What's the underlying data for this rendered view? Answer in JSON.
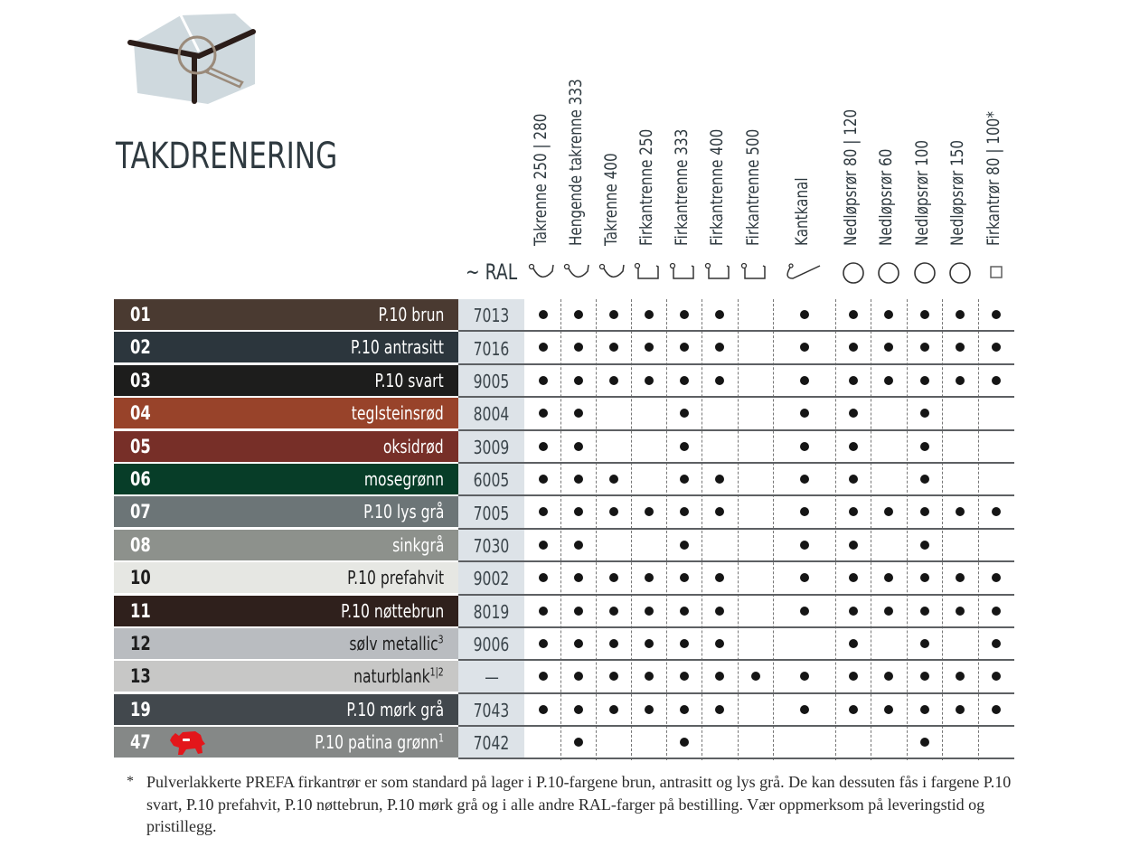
{
  "title": "TAKDRENERING",
  "ral_header": "~ RAL",
  "columns": [
    {
      "label": "Takrenne 250 | 280",
      "icon": "half-round-gutter-icon"
    },
    {
      "label": "Hengende takrenne 333",
      "icon": "half-round-gutter-icon"
    },
    {
      "label": "Takrenne 400",
      "icon": "half-round-gutter-icon"
    },
    {
      "label": "Firkantrenne 250",
      "icon": "box-gutter-icon"
    },
    {
      "label": "Firkantrenne 333",
      "icon": "box-gutter-icon"
    },
    {
      "label": "Firkantrenne 400",
      "icon": "box-gutter-icon"
    },
    {
      "label": "Firkantrenne 500",
      "icon": "box-gutter-icon"
    },
    {
      "label": "Kantkanal",
      "icon": "edge-channel-icon"
    },
    {
      "label": "Nedløpsrør 80 | 120",
      "icon": "round-pipe-icon"
    },
    {
      "label": "Nedløpsrør 60",
      "icon": "round-pipe-icon"
    },
    {
      "label": "Nedløpsrør 100",
      "icon": "round-pipe-icon"
    },
    {
      "label": "Nedløpsrør 150",
      "icon": "round-pipe-icon"
    },
    {
      "label": "Firkantrør 80 | 100*",
      "icon": "square-pipe-icon"
    }
  ],
  "rows": [
    {
      "num": "01",
      "name": "P.10 brun",
      "sup": "",
      "ral": "7013",
      "bg": "#4a3a31",
      "fg": "#ffffff",
      "avail": [
        1,
        1,
        1,
        1,
        1,
        1,
        0,
        1,
        1,
        1,
        1,
        1,
        1
      ]
    },
    {
      "num": "02",
      "name": "P.10 antrasitt",
      "sup": "",
      "ral": "7016",
      "bg": "#2c363d",
      "fg": "#ffffff",
      "avail": [
        1,
        1,
        1,
        1,
        1,
        1,
        0,
        1,
        1,
        1,
        1,
        1,
        1
      ]
    },
    {
      "num": "03",
      "name": "P.10 svart",
      "sup": "",
      "ral": "9005",
      "bg": "#1d1d1c",
      "fg": "#ffffff",
      "avail": [
        1,
        1,
        1,
        1,
        1,
        1,
        0,
        1,
        1,
        1,
        1,
        1,
        1
      ]
    },
    {
      "num": "04",
      "name": "teglsteinsrød",
      "sup": "",
      "ral": "8004",
      "bg": "#98432a",
      "fg": "#ffffff",
      "avail": [
        1,
        1,
        0,
        0,
        1,
        0,
        0,
        1,
        1,
        0,
        1,
        0,
        0
      ]
    },
    {
      "num": "05",
      "name": "oksidrød",
      "sup": "",
      "ral": "3009",
      "bg": "#772f28",
      "fg": "#ffffff",
      "avail": [
        1,
        1,
        0,
        0,
        1,
        0,
        0,
        1,
        1,
        0,
        1,
        0,
        0
      ]
    },
    {
      "num": "06",
      "name": "mosegrønn",
      "sup": "",
      "ral": "6005",
      "bg": "#073d28",
      "fg": "#ffffff",
      "avail": [
        1,
        1,
        1,
        0,
        1,
        1,
        0,
        1,
        1,
        0,
        1,
        0,
        0
      ]
    },
    {
      "num": "07",
      "name": "P.10 lys grå",
      "sup": "",
      "ral": "7005",
      "bg": "#6c7577",
      "fg": "#ffffff",
      "avail": [
        1,
        1,
        1,
        1,
        1,
        1,
        0,
        1,
        1,
        1,
        1,
        1,
        1
      ]
    },
    {
      "num": "08",
      "name": "sinkgrå",
      "sup": "",
      "ral": "7030",
      "bg": "#8d918c",
      "fg": "#ffffff",
      "avail": [
        1,
        1,
        0,
        0,
        1,
        0,
        0,
        1,
        1,
        0,
        1,
        0,
        0
      ]
    },
    {
      "num": "10",
      "name": "P.10 prefahvit",
      "sup": "",
      "ral": "9002",
      "bg": "#e6e7e3",
      "fg": "#1d1d1d",
      "avail": [
        1,
        1,
        1,
        1,
        1,
        1,
        0,
        1,
        1,
        1,
        1,
        1,
        1
      ]
    },
    {
      "num": "11",
      "name": "P.10 nøttebrun",
      "sup": "",
      "ral": "8019",
      "bg": "#2f201c",
      "fg": "#ffffff",
      "avail": [
        1,
        1,
        1,
        1,
        1,
        1,
        0,
        1,
        1,
        1,
        1,
        1,
        1
      ]
    },
    {
      "num": "12",
      "name": "sølv metallic",
      "sup": "3",
      "ral": "9006",
      "bg": "#b9bcc0",
      "fg": "#1d1d1d",
      "avail": [
        1,
        1,
        1,
        1,
        1,
        1,
        0,
        0,
        1,
        0,
        1,
        0,
        1
      ]
    },
    {
      "num": "13",
      "name": "naturblank",
      "sup": "1|2",
      "ral": "—",
      "bg": "#c7c7c6",
      "fg": "#1d1d1d",
      "avail": [
        1,
        1,
        1,
        1,
        1,
        1,
        1,
        1,
        1,
        1,
        1,
        1,
        1
      ]
    },
    {
      "num": "19",
      "name": "P.10 mørk grå",
      "sup": "",
      "ral": "7043",
      "bg": "#42484d",
      "fg": "#ffffff",
      "avail": [
        1,
        1,
        1,
        1,
        1,
        1,
        0,
        1,
        1,
        1,
        1,
        1,
        1
      ]
    },
    {
      "num": "47",
      "name": "P.10 patina grønn",
      "sup": "1",
      "ral": "7042",
      "bg": "#858887",
      "fg": "#ffffff",
      "avail": [
        0,
        1,
        0,
        0,
        1,
        0,
        0,
        0,
        0,
        0,
        1,
        0,
        0
      ],
      "badge": "bull-icon"
    }
  ],
  "footnote": {
    "marker": "*",
    "text": "Pulverlakkerte PREFA firkantrør er som standard på lager i P.10-fargene brun, antrasitt og lys grå. De kan dessuten fås i fargene P.10 svart, P.10 prefahvit, P.10 nøttebrun, P.10 mørk grå og i alle andre RAL-farger på bestilling. Vær oppmerksom på leveringstid og pristillegg."
  },
  "colors": {
    "title": "#2f3a40",
    "ral_bg": "#dde3e8",
    "dot": "#151515",
    "logo_house": "#cfd9de",
    "logo_gutter": "#2b1d19",
    "logo_lens": "#9a8a7a",
    "bull": "#e3161b"
  }
}
